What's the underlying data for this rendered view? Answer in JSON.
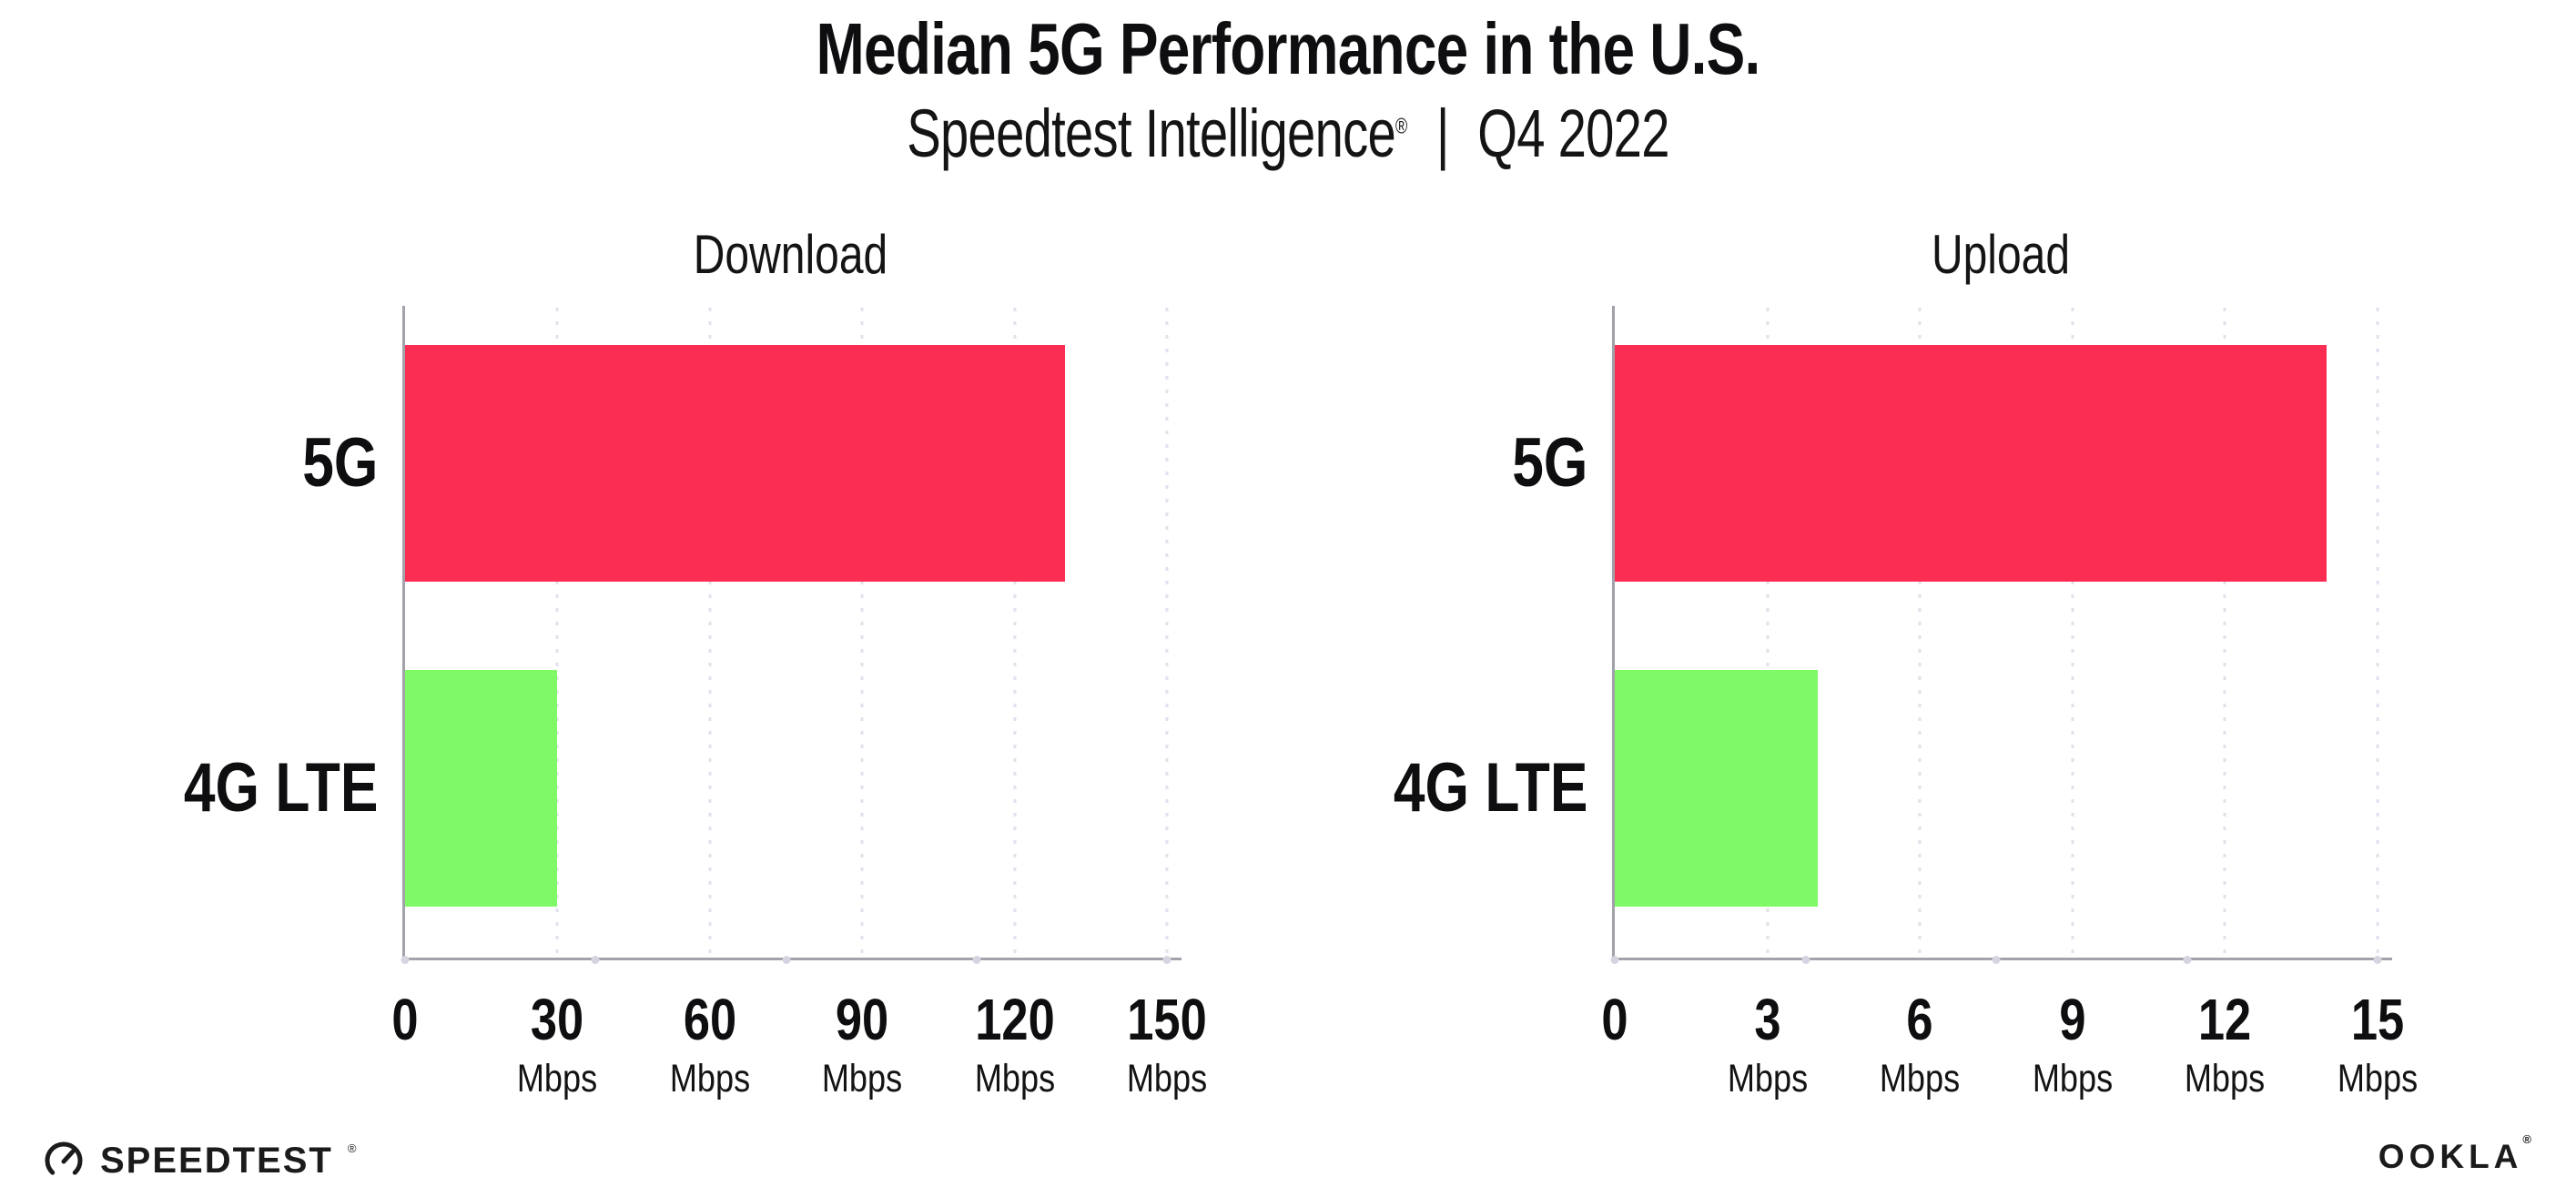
{
  "header": {
    "title": "Median 5G Performance in the U.S.",
    "subtitle_brand": "Speedtest Intelligence",
    "subtitle_reg": "®",
    "subtitle_separator": "|",
    "subtitle_period": "Q4 2022"
  },
  "chart_data": [
    {
      "type": "bar",
      "orientation": "horizontal",
      "title": "Download",
      "categories": [
        "5G",
        "4G LTE"
      ],
      "values": [
        130,
        30
      ],
      "unit": "Mbps",
      "xlim": [
        0,
        150
      ],
      "xticks": [
        0,
        30,
        60,
        90,
        120,
        150
      ],
      "tick_unit_label": "Mbps",
      "bar_colors": [
        "#fc2d53",
        "#80f966"
      ],
      "grid": "dotted-vertical",
      "legend": "none"
    },
    {
      "type": "bar",
      "orientation": "horizontal",
      "title": "Upload",
      "categories": [
        "5G",
        "4G LTE"
      ],
      "values": [
        14,
        4
      ],
      "unit": "Mbps",
      "xlim": [
        0,
        15
      ],
      "xticks": [
        0,
        3,
        6,
        9,
        12,
        15
      ],
      "tick_unit_label": "Mbps",
      "bar_colors": [
        "#fc2d53",
        "#80f966"
      ],
      "grid": "dotted-vertical",
      "legend": "none"
    }
  ],
  "footer": {
    "speedtest_logo_text": "SPEEDTEST",
    "speedtest_reg": "®",
    "speedtest_icon": "gauge-icon",
    "ookla_logo_text": "OOKLA",
    "ookla_reg": "®"
  },
  "colors": {
    "bar_5g": "#fc2d53",
    "bar_4g_lte": "#80f966",
    "axis": "#a2a2aa",
    "gridline": "#e1e1ec",
    "axis_dot": "#d5d5e2",
    "text": "#0e0e10",
    "background": "#ffffff"
  }
}
